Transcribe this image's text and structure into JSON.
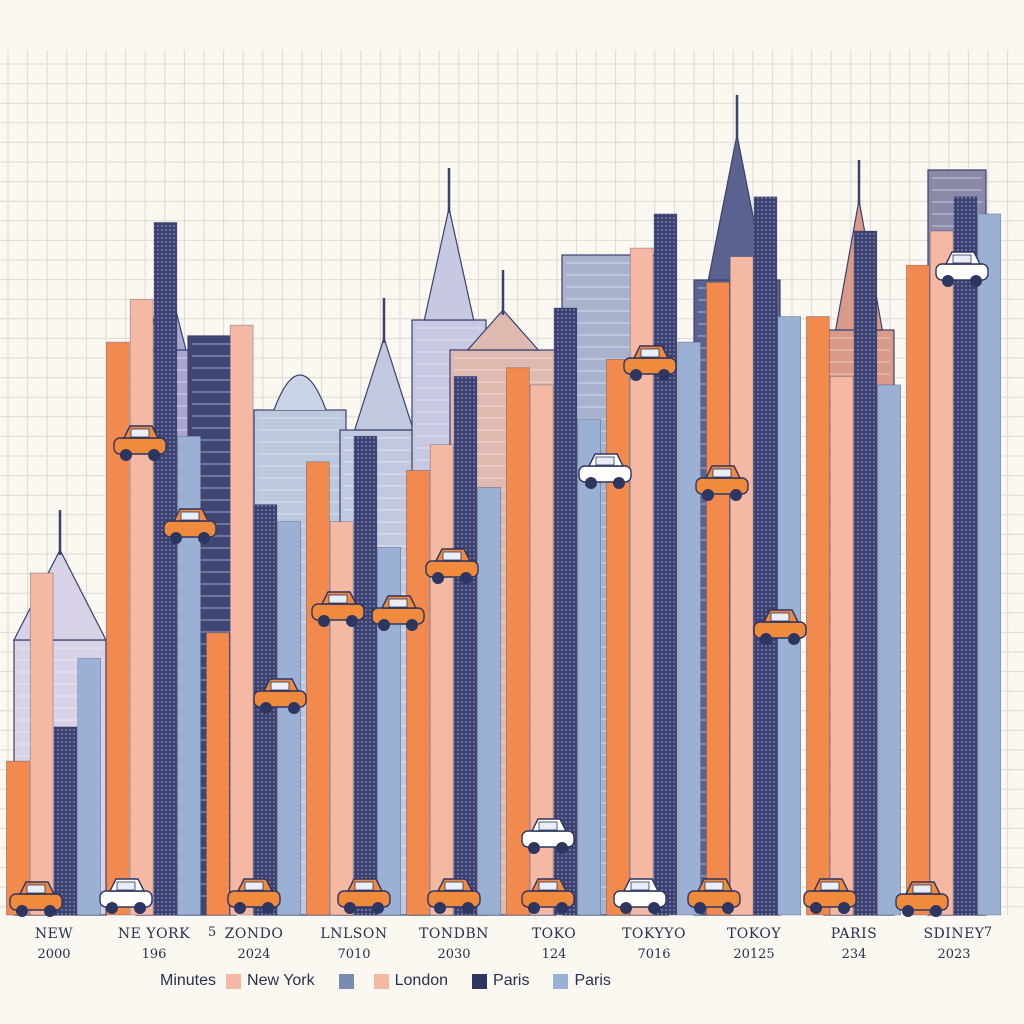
{
  "chart_data": {
    "type": "bar",
    "title": "",
    "xlabel": "",
    "ylabel": "",
    "grid": true,
    "legend_placement": "bottom",
    "categories": [
      {
        "name": "NEW",
        "year": "2000"
      },
      {
        "name": "NE YORK",
        "year": "196"
      },
      {
        "name": "ZONDO",
        "year": "2024"
      },
      {
        "name": "LNLSON",
        "year": "7010"
      },
      {
        "name": "TONDBN",
        "year": "2030"
      },
      {
        "name": "TOKO",
        "year": "124"
      },
      {
        "name": "TOKYYO",
        "year": "7016"
      },
      {
        "name": "TOKOY",
        "year": "20125"
      },
      {
        "name": "PARIS",
        "year": "234"
      },
      {
        "name": "SDINEY",
        "year": "2023"
      }
    ],
    "stray_labels": [
      "5",
      "7"
    ],
    "series": [
      {
        "name": "New York",
        "color": "#f28a4e",
        "values": [
          18,
          67,
          33,
          53,
          52,
          64,
          65,
          74,
          70,
          76
        ]
      },
      {
        "name": "London",
        "color": "#f5b8a2",
        "values": [
          40,
          72,
          69,
          46,
          55,
          62,
          78,
          77,
          63,
          80
        ]
      },
      {
        "name": "Paris",
        "color": "#2d3561",
        "values": [
          22,
          81,
          48,
          56,
          63,
          71,
          82,
          84,
          80,
          84
        ]
      },
      {
        "name": "Paris",
        "color": "#9ab0d4",
        "values": [
          30,
          56,
          46,
          43,
          50,
          58,
          67,
          70,
          62,
          82
        ]
      }
    ],
    "ylim": [
      0,
      100
    ],
    "legend": {
      "label": "Minutes",
      "items": [
        {
          "text": "New York",
          "swatches": [
            "#f5b8a2"
          ]
        },
        {
          "text": "London",
          "swatches": [
            "#7a8ab2",
            "#f5b8a2"
          ]
        },
        {
          "text": "Paris",
          "swatches": [
            "#2d3561"
          ]
        },
        {
          "text": "Paris",
          "swatches": [
            "#9ab0d4"
          ]
        }
      ]
    }
  },
  "colors": {
    "background": "#fbf8f1",
    "grid": "#dcdad2",
    "text": "#27304f",
    "building_dark": "#4a4f78",
    "building_light": "#c9c6dc",
    "car": "#f08a3c"
  }
}
